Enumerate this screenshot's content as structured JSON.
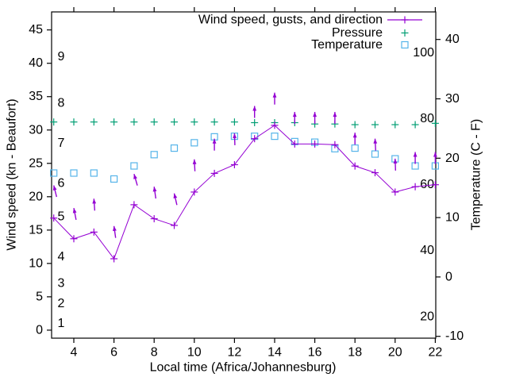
{
  "chart_data": {
    "type": "line",
    "title": "",
    "x_hours": [
      3,
      4,
      5,
      6,
      7,
      8,
      9,
      10,
      11,
      12,
      13,
      14,
      15,
      16,
      17,
      18,
      19,
      20,
      21,
      22
    ],
    "series": [
      {
        "name": "Wind speed, gusts, and direction",
        "style": "line-with-plus-markers-and-gust-arrows",
        "color": "#9400D3",
        "wind_speed_kn": [
          16.8,
          13.7,
          14.7,
          10.7,
          18.8,
          16.7,
          15.7,
          20.7,
          23.5,
          24.8,
          28.7,
          30.7,
          27.9,
          27.9,
          27.8,
          24.6,
          23.6,
          20.7,
          21.5,
          21.8
        ],
        "gust_kn": [
          21.7,
          18.3,
          19.7,
          15.6,
          23.4,
          21.5,
          20.5,
          25.6,
          28.7,
          29.5,
          33.6,
          35.6,
          32.7,
          32.7,
          32.7,
          29.6,
          28.7,
          25.7,
          26.7,
          26.7
        ],
        "gust_arrow_lean_deg": [
          -14,
          -11,
          -4,
          -8,
          -16,
          -8,
          -13,
          -3,
          0,
          -2,
          0,
          0,
          0,
          0,
          0,
          0,
          -3,
          -2,
          0,
          0
        ]
      },
      {
        "name": "Pressure",
        "style": "plus-markers",
        "color": "#009E73",
        "plotted_left_axis_units": [
          31.2,
          31.2,
          31.2,
          31.2,
          31.2,
          31.2,
          31.2,
          31.2,
          31.2,
          31.2,
          31.1,
          31.1,
          31.1,
          30.9,
          30.9,
          30.8,
          30.8,
          30.8,
          30.8,
          31.0
        ]
      },
      {
        "name": "Temperature",
        "style": "open-square-markers",
        "color": "#56B4E9",
        "temperature_c": [
          17.5,
          17.5,
          17.5,
          16.5,
          18.7,
          20.6,
          21.7,
          22.6,
          23.6,
          23.7,
          23.7,
          23.7,
          22.8,
          22.7,
          21.6,
          21.7,
          20.7,
          19.9,
          18.7,
          18.7
        ]
      }
    ],
    "legend": {
      "position": "top-right-inside",
      "items": [
        {
          "label": "Wind speed, gusts, and direction",
          "marker": "line-plus",
          "color": "#9400D3"
        },
        {
          "label": "Pressure",
          "marker": "plus",
          "color": "#009E73"
        },
        {
          "label": "Temperature",
          "marker": "square",
          "color": "#56B4E9"
        }
      ]
    },
    "axes": {
      "x": {
        "label": "Local time (Africa/Johannesburg)",
        "tick_values": [
          4,
          6,
          8,
          10,
          12,
          14,
          16,
          18,
          20,
          22
        ],
        "range": [
          2.9,
          22.02
        ]
      },
      "y_left": {
        "label": "Wind speed (kn - Beaufort)",
        "tick_values": [
          0,
          5,
          10,
          15,
          20,
          25,
          30,
          35,
          40,
          45
        ],
        "range": [
          -1.2,
          47.7
        ],
        "beaufort_inner_labels": [
          {
            "text": "1",
            "kn": 1
          },
          {
            "text": "2",
            "kn": 4
          },
          {
            "text": "3",
            "kn": 7
          },
          {
            "text": "4",
            "kn": 11
          },
          {
            "text": "5",
            "kn": 17
          },
          {
            "text": "6",
            "kn": 22
          },
          {
            "text": "7",
            "kn": 28
          },
          {
            "text": "8",
            "kn": 34
          },
          {
            "text": "9",
            "kn": 41
          }
        ]
      },
      "y_right": {
        "label": "Temperature (C - F)",
        "tick_values": [
          -10,
          0,
          10,
          20,
          30,
          40
        ],
        "range": [
          -10.3,
          44.7
        ],
        "fahrenheit_inner_labels": [
          20,
          40,
          60,
          80,
          100
        ]
      }
    },
    "grid": false,
    "background": "#ffffff",
    "border_color": "#000000"
  }
}
